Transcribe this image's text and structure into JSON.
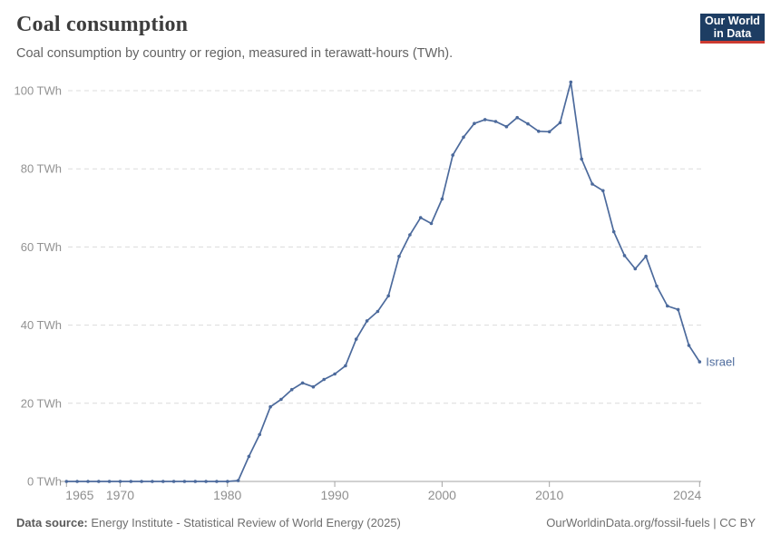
{
  "header": {
    "title": "Coal consumption",
    "subtitle": "Coal consumption by country or region, measured in terawatt-hours (TWh).",
    "logo": {
      "line1": "Our World",
      "line2": "in Data",
      "bg_color": "#1d3d63",
      "accent_color": "#cc3b31"
    }
  },
  "chart_data": {
    "type": "line",
    "title": "Coal consumption",
    "subtitle": "Coal consumption by country or region, measured in terawatt-hours (TWh).",
    "unit": "TWh",
    "xlabel": "",
    "ylabel": "",
    "ylim": [
      0,
      100
    ],
    "yticks": [
      0,
      20,
      40,
      60,
      80,
      100
    ],
    "ytick_suffix": " TWh",
    "xticks": [
      1965,
      1970,
      1980,
      1990,
      2000,
      2010,
      2024
    ],
    "grid": "horizontal-dashed",
    "legend_position": "line-end-label",
    "x": [
      1965,
      1966,
      1967,
      1968,
      1969,
      1970,
      1971,
      1972,
      1973,
      1974,
      1975,
      1976,
      1977,
      1978,
      1979,
      1980,
      1981,
      1982,
      1983,
      1984,
      1985,
      1986,
      1987,
      1988,
      1989,
      1990,
      1991,
      1992,
      1993,
      1994,
      1995,
      1996,
      1997,
      1998,
      1999,
      2000,
      2001,
      2002,
      2003,
      2004,
      2005,
      2006,
      2007,
      2008,
      2009,
      2010,
      2011,
      2012,
      2013,
      2014,
      2015,
      2016,
      2017,
      2018,
      2019,
      2020,
      2021,
      2022,
      2023,
      2024
    ],
    "series": [
      {
        "name": "Israel",
        "color": "#4C6A9C",
        "values": [
          0,
          0,
          0,
          0,
          0,
          0,
          0,
          0,
          0,
          0,
          0,
          0,
          0,
          0,
          0,
          0,
          0.2,
          6.4,
          12,
          19.1,
          21,
          23.5,
          25.2,
          24.2,
          26.1,
          27.5,
          29.6,
          36.4,
          41.1,
          43.5,
          47.5,
          57.6,
          63.1,
          67.5,
          66,
          72.3,
          83.5,
          88.1,
          91.6,
          92.6,
          92.1,
          90.8,
          93.1,
          91.5,
          89.6,
          89.5,
          91.8,
          102.2,
          82.5,
          76.1,
          74.4,
          63.9,
          57.8,
          54.4,
          57.6,
          50,
          44.9,
          44,
          34.8,
          30.6
        ]
      }
    ]
  },
  "footer": {
    "source_label": "Data source:",
    "source_text": " Energy Institute - Statistical Review of World Energy (2025)",
    "link_text": "OurWorldinData.org/fossil-fuels | CC BY"
  }
}
